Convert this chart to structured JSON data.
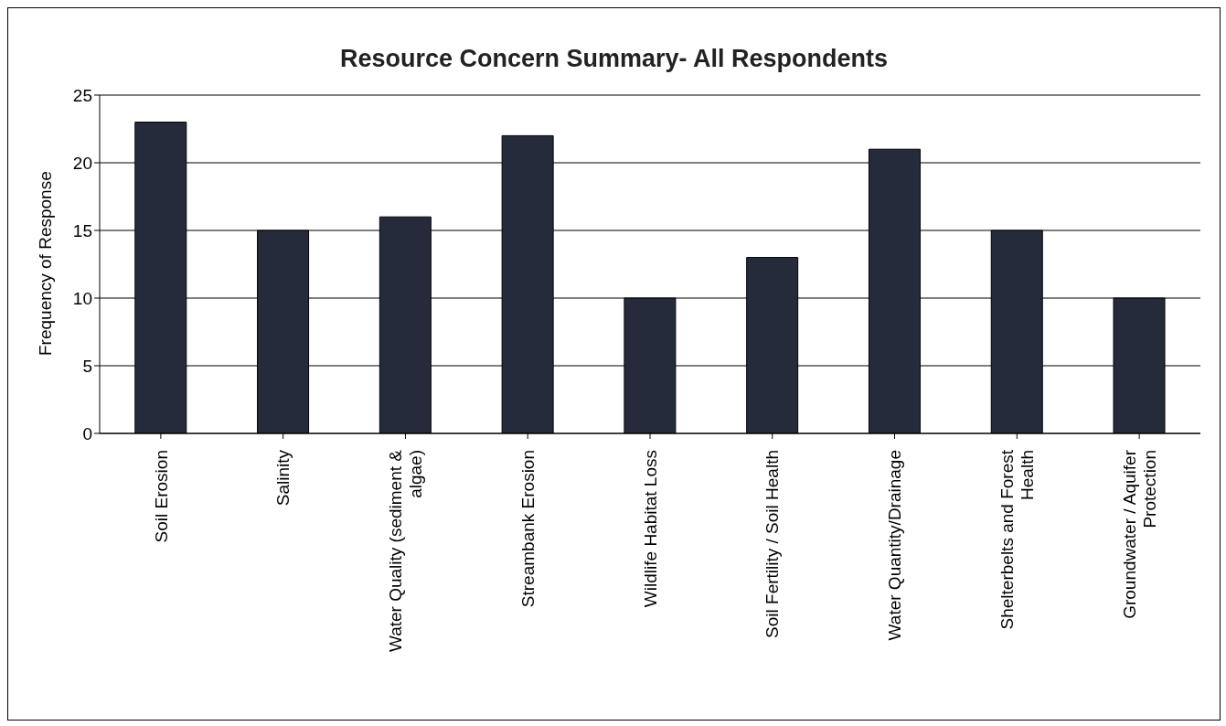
{
  "chart_data": {
    "type": "bar",
    "title": "Resource Concern Summary- All Respondents",
    "ylabel": "Frequency of Response",
    "categories": [
      "Soil Erosion",
      "Salinity",
      "Water Quality (sediment & algae)",
      "Streambank Erosion",
      "Wildlife Habitat Loss",
      "Soil Fertility / Soil Health",
      "Water Quantity/Drainage",
      "Shelterbelts and Forest Health",
      "Groundwater / Aquifer Protection"
    ],
    "values": [
      23,
      15,
      16,
      22,
      10,
      13,
      21,
      15,
      10
    ],
    "color": "#262b3b",
    "ylim": [
      0,
      25
    ],
    "yticks": [
      0,
      5,
      10,
      15,
      20,
      25
    ],
    "grid": "y"
  }
}
